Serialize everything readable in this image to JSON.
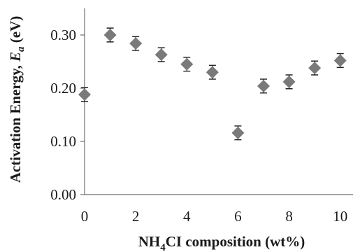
{
  "chart_data": {
    "type": "scatter",
    "xlabel_parts": [
      "NH",
      "4",
      "CI composition (wt%)"
    ],
    "ylabel_parts": [
      "Activation Energy, ",
      "E",
      "a",
      " (eV)"
    ],
    "xlim": [
      0,
      10.5
    ],
    "ylim": [
      0,
      0.35
    ],
    "x_ticks": [
      0,
      2,
      4,
      6,
      8,
      10
    ],
    "x_tick_labels": [
      "0",
      "2",
      "4",
      "6",
      "8",
      "10"
    ],
    "y_ticks": [
      0,
      0.1,
      0.2,
      0.3
    ],
    "y_tick_labels": [
      "0.00",
      "0.10",
      "0.20",
      "0.30"
    ],
    "points": [
      {
        "x": 0,
        "y": 0.188,
        "err": 0.013
      },
      {
        "x": 1,
        "y": 0.3,
        "err": 0.013
      },
      {
        "x": 2,
        "y": 0.284,
        "err": 0.013
      },
      {
        "x": 3,
        "y": 0.263,
        "err": 0.013
      },
      {
        "x": 4,
        "y": 0.245,
        "err": 0.013
      },
      {
        "x": 5,
        "y": 0.23,
        "err": 0.013
      },
      {
        "x": 6,
        "y": 0.116,
        "err": 0.013
      },
      {
        "x": 7,
        "y": 0.204,
        "err": 0.013
      },
      {
        "x": 8,
        "y": 0.212,
        "err": 0.013
      },
      {
        "x": 9,
        "y": 0.238,
        "err": 0.013
      },
      {
        "x": 10,
        "y": 0.252,
        "err": 0.013
      }
    ],
    "marker": "diamond",
    "marker_color": "#7a7a7a",
    "error_bar_color": "#222222",
    "grid": false,
    "legend": "none"
  }
}
